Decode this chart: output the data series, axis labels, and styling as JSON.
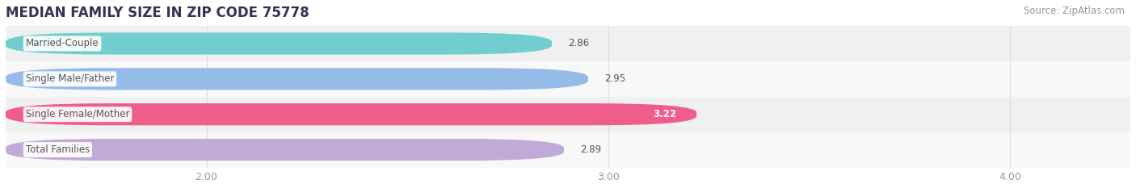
{
  "title": "MEDIAN FAMILY SIZE IN ZIP CODE 75778",
  "source": "Source: ZipAtlas.com",
  "categories": [
    "Married-Couple",
    "Single Male/Father",
    "Single Female/Mother",
    "Total Families"
  ],
  "values": [
    2.86,
    2.95,
    3.22,
    2.89
  ],
  "bar_colors": [
    "#72cece",
    "#95bce8",
    "#ef5d8a",
    "#c2aad8"
  ],
  "row_bg_colors": [
    "#f0f0f0",
    "#f8f8f8",
    "#f0f0f0",
    "#f8f8f8"
  ],
  "label_text_color": "#555555",
  "value_text_color_outside": "#555555",
  "value_text_color_inside": "#ffffff",
  "background_color": "#ffffff",
  "plot_bg_color": "#ffffff",
  "xlim_min": 1.5,
  "xlim_max": 4.3,
  "xticks": [
    2.0,
    3.0,
    4.0
  ],
  "xtick_labels": [
    "2.00",
    "3.00",
    "4.00"
  ],
  "title_fontsize": 12,
  "source_fontsize": 8.5,
  "bar_label_fontsize": 8.5,
  "value_fontsize": 8.5,
  "tick_fontsize": 9,
  "bar_height": 0.62,
  "title_color": "#333355",
  "tick_color": "#999999",
  "grid_color": "#dddddd",
  "value_inside_threshold": 3.22
}
